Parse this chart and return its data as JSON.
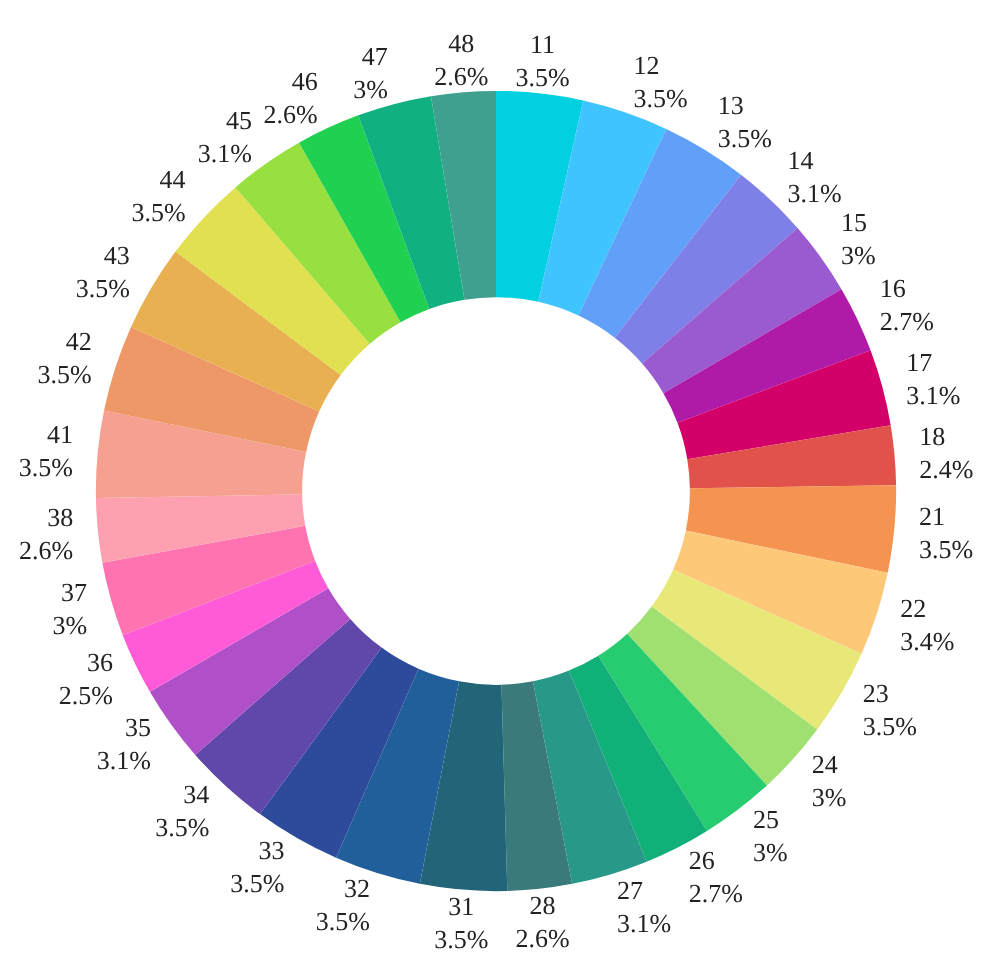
{
  "chart_data": {
    "type": "donut",
    "categories": [
      "11",
      "12",
      "13",
      "14",
      "15",
      "16",
      "17",
      "18",
      "21",
      "22",
      "23",
      "24",
      "25",
      "26",
      "27",
      "28",
      "31",
      "32",
      "33",
      "34",
      "35",
      "36",
      "37",
      "38",
      "41",
      "42",
      "43",
      "44",
      "45",
      "46",
      "47",
      "48"
    ],
    "values": [
      3.5,
      3.5,
      3.5,
      3.1,
      3,
      2.7,
      3.1,
      2.4,
      3.5,
      3.4,
      3.5,
      3,
      3,
      2.7,
      3.1,
      2.6,
      3.5,
      3.5,
      3.5,
      3.5,
      3.1,
      2.5,
      3,
      2.6,
      3.5,
      3.5,
      3.5,
      3.5,
      3.1,
      2.6,
      3,
      2.6
    ],
    "value_labels": [
      "3.5%",
      "3.5%",
      "3.5%",
      "3.1%",
      "3%",
      "2.7%",
      "3.1%",
      "2.4%",
      "3.5%",
      "3.4%",
      "3.5%",
      "3%",
      "3%",
      "2.7%",
      "3.1%",
      "2.6%",
      "3.5%",
      "3.5%",
      "3.5%",
      "3.5%",
      "3.1%",
      "2.5%",
      "3%",
      "2.6%",
      "3.5%",
      "3.5%",
      "3.5%",
      "3.5%",
      "3.1%",
      "2.6%",
      "3%",
      "2.6%"
    ],
    "colors": [
      "#00d0e0",
      "#40c4ff",
      "#60a0f8",
      "#7f7fe8",
      "#9a5ad0",
      "#b01aa8",
      "#d4006a",
      "#e0524a",
      "#f59350",
      "#fdc878",
      "#e8e878",
      "#a0e070",
      "#28cc70",
      "#10b078",
      "#289888",
      "#3a7a7a",
      "#226478",
      "#205f9a",
      "#2d4b9a",
      "#6048aa",
      "#b050c8",
      "#ff5ad8",
      "#ff74b0",
      "#ffa0b0",
      "#f5a090",
      "#ee9868",
      "#e8b050",
      "#e0e050",
      "#98e040",
      "#20d050",
      "#10b080",
      "#40a090"
    ]
  }
}
